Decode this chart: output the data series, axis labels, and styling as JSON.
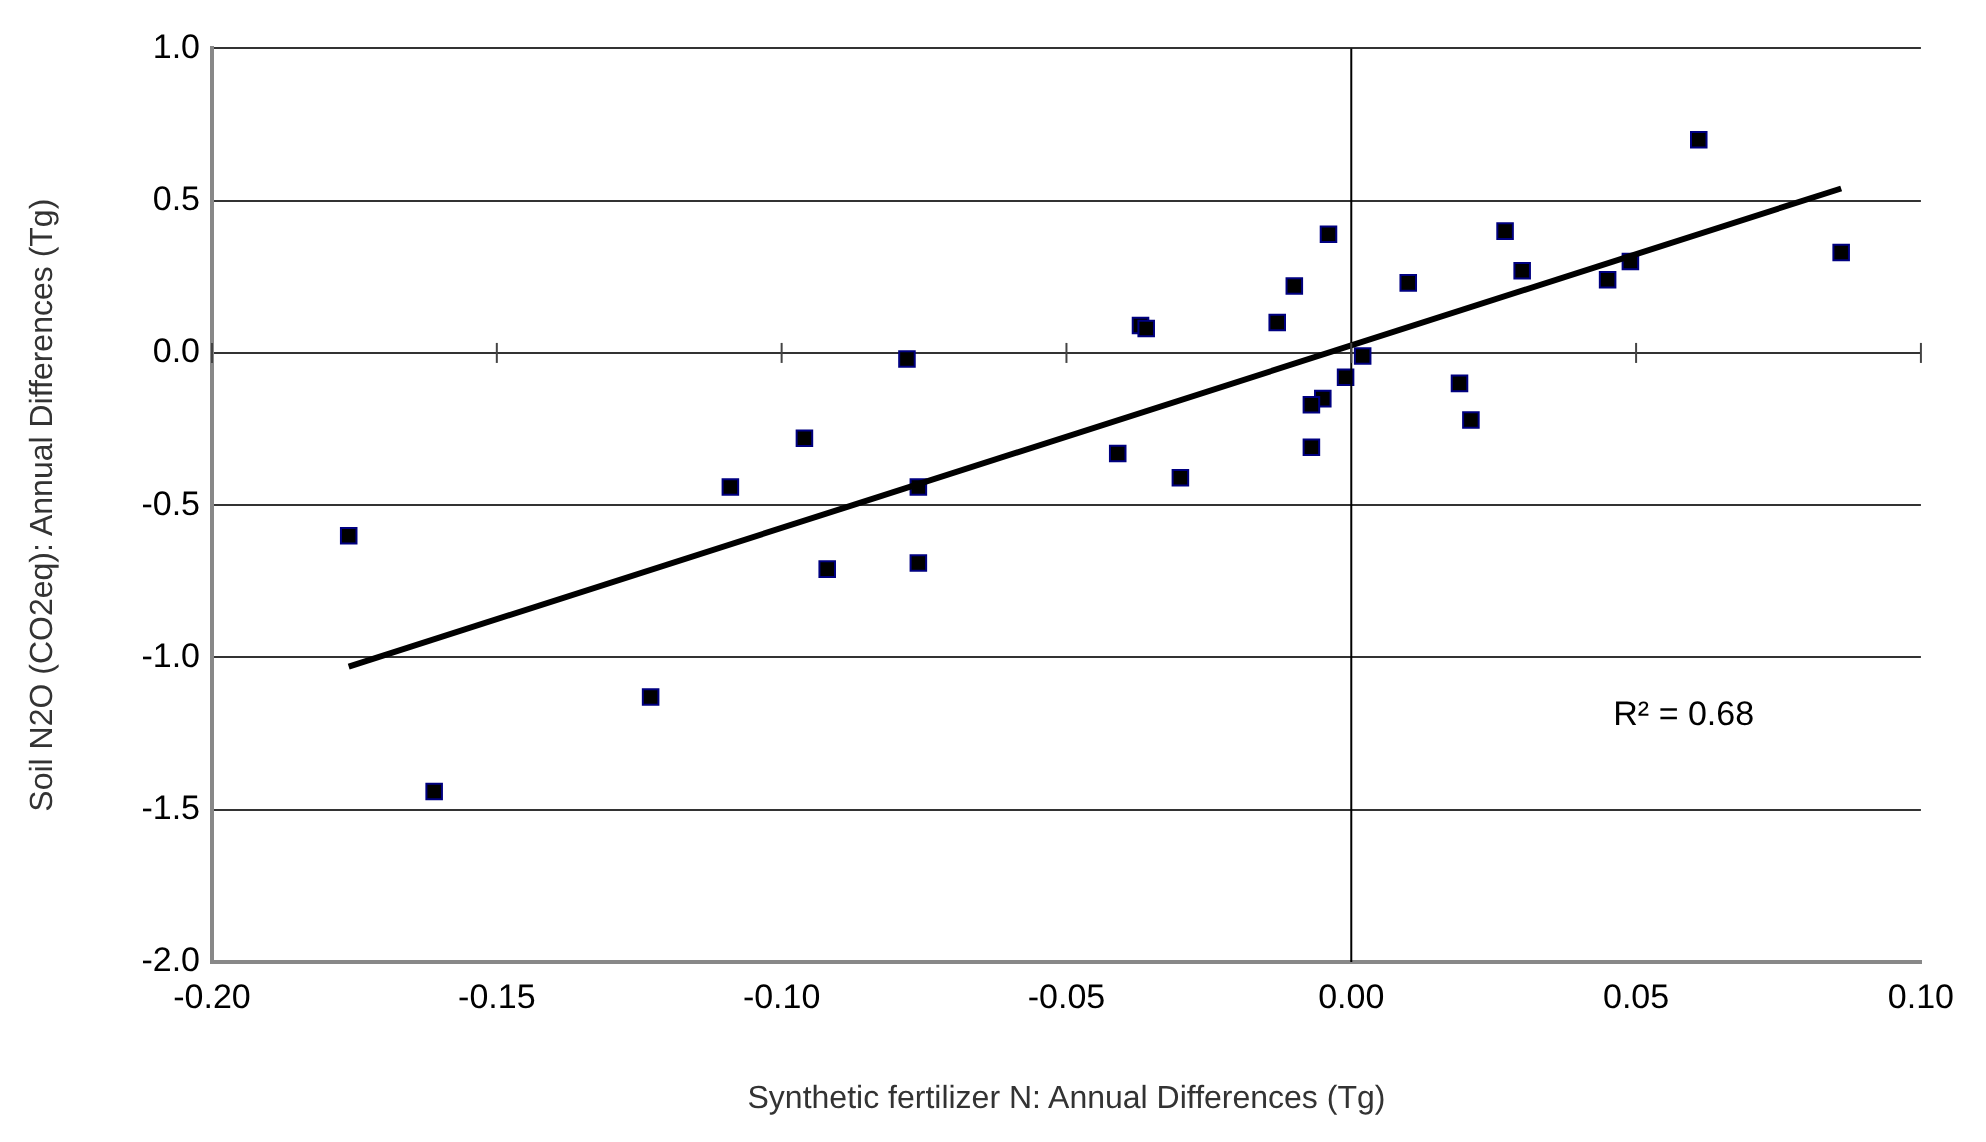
{
  "chart_data": {
    "type": "scatter",
    "xlabel": "Synthetic fertilizer N: Annual Differences (Tg)",
    "ylabel": "Soil N2O (CO2eq): Annual Differences (Tg)",
    "xlim": [
      -0.2,
      0.1
    ],
    "ylim": [
      -2,
      1
    ],
    "xticks": [
      {
        "value": -0.2,
        "label": "-0.20"
      },
      {
        "value": -0.15,
        "label": "-0.15"
      },
      {
        "value": -0.1,
        "label": "-0.10"
      },
      {
        "value": -0.05,
        "label": "-0.05"
      },
      {
        "value": 0,
        "label": "0.00"
      },
      {
        "value": 0.05,
        "label": "0.05"
      },
      {
        "value": 0.1,
        "label": "0.10"
      }
    ],
    "yticks": [
      {
        "value": -2,
        "label": "-2.0"
      },
      {
        "value": -1.5,
        "label": "-1.5"
      },
      {
        "value": -1,
        "label": "-1.0"
      },
      {
        "value": -0.5,
        "label": "-0.5"
      },
      {
        "value": 0,
        "label": "0.0"
      },
      {
        "value": 0.5,
        "label": "0.5"
      },
      {
        "value": 1,
        "label": "1.0"
      }
    ],
    "grid": "y",
    "legend": false,
    "ref_lines": [
      {
        "axis": "x",
        "value": 0,
        "color": "#000000"
      }
    ],
    "annotations": [
      "R² = 0.68"
    ],
    "series": [
      {
        "marker": "square",
        "color": "#000000",
        "x": [
          -0.176,
          -0.078,
          -0.096,
          -0.109,
          -0.076,
          -0.092,
          -0.076,
          -0.123,
          -0.161,
          0.061,
          0.086,
          -0.004,
          0.027,
          -0.01,
          0.01,
          0.03,
          0.049,
          0.045,
          -0.037,
          -0.036,
          -0.013,
          0.002,
          -0.001,
          -0.005,
          -0.007,
          0.019,
          0.021,
          -0.007,
          -0.041,
          -0.03
        ],
        "values": [
          -0.6,
          -0.02,
          -0.28,
          -0.44,
          -0.44,
          -0.71,
          -0.69,
          -1.13,
          -1.44,
          0.7,
          0.33,
          0.39,
          0.4,
          0.22,
          0.23,
          0.27,
          0.3,
          0.24,
          0.09,
          0.08,
          0.1,
          -0.01,
          -0.08,
          -0.15,
          -0.17,
          -0.1,
          -0.22,
          -0.31,
          -0.33,
          -0.41
        ]
      },
      {
        "type": "line",
        "color": "#000000",
        "x": [
          -0.176,
          0.086
        ],
        "values": [
          -1.03,
          0.54
        ]
      }
    ]
  }
}
